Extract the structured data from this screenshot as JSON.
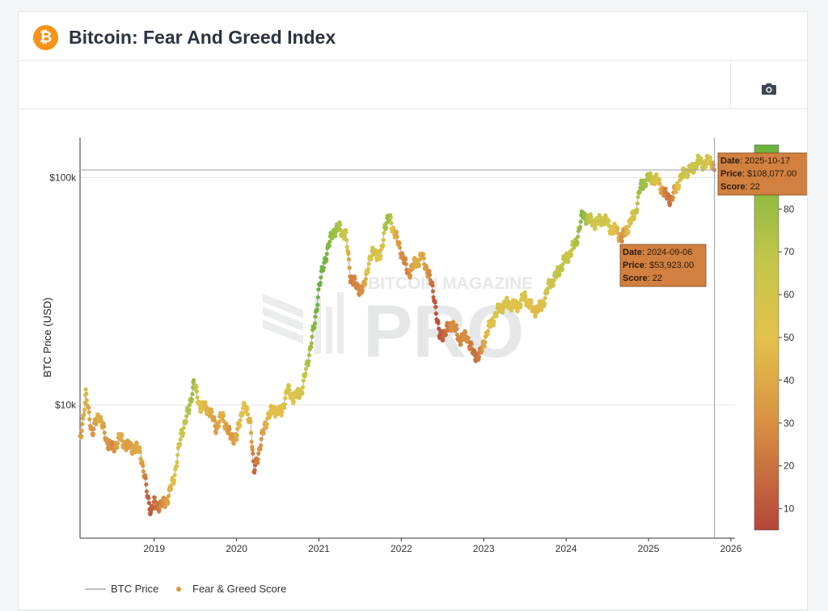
{
  "header": {
    "logo_symbol": "₿",
    "title": "Bitcoin: Fear And Greed Index"
  },
  "toolbar": {
    "camera_icon": "camera-icon"
  },
  "watermark": {
    "line1": "BITCOIN MAGAZINE",
    "line2": "PRO"
  },
  "chart_data": {
    "type": "scatter",
    "title": "Bitcoin: Fear And Greed Index",
    "xlabel": "",
    "ylabel": "BTC Price (USD)",
    "y_scale": "log",
    "ylim": [
      2600,
      150000
    ],
    "xlim": [
      2018.1,
      2026.05
    ],
    "x_ticks": [
      2019,
      2020,
      2021,
      2022,
      2023,
      2024,
      2025,
      2026
    ],
    "x_tick_labels": [
      "2019",
      "2020",
      "2021",
      "2022",
      "2023",
      "2024",
      "2025",
      "2026"
    ],
    "y_ticks": [
      10000,
      100000
    ],
    "y_tick_labels": [
      "$10k",
      "$100k"
    ],
    "colorbar": {
      "ticks": [
        10,
        20,
        30,
        40,
        50,
        60,
        70,
        80
      ],
      "min": 5,
      "max": 95
    },
    "legend": [
      "BTC Price",
      "Fear & Greed Score"
    ],
    "legend_position": "bottom-left",
    "series": [
      {
        "name": "BTC Price",
        "points": [
          [
            2018.1,
            7000,
            28
          ],
          [
            2018.17,
            11000,
            45
          ],
          [
            2018.25,
            7500,
            25
          ],
          [
            2018.33,
            9200,
            42
          ],
          [
            2018.42,
            7000,
            28
          ],
          [
            2018.5,
            6400,
            22
          ],
          [
            2018.58,
            7200,
            40
          ],
          [
            2018.67,
            6600,
            30
          ],
          [
            2018.75,
            6500,
            35
          ],
          [
            2018.83,
            6300,
            38
          ],
          [
            2018.92,
            4000,
            12
          ],
          [
            2018.96,
            3400,
            10
          ],
          [
            2019.0,
            3700,
            15
          ],
          [
            2019.08,
            3600,
            20
          ],
          [
            2019.17,
            3900,
            35
          ],
          [
            2019.25,
            5000,
            55
          ],
          [
            2019.33,
            7500,
            65
          ],
          [
            2019.42,
            9500,
            75
          ],
          [
            2019.48,
            12500,
            80
          ],
          [
            2019.55,
            10000,
            50
          ],
          [
            2019.67,
            9500,
            40
          ],
          [
            2019.75,
            8000,
            30
          ],
          [
            2019.83,
            9000,
            42
          ],
          [
            2019.92,
            7300,
            25
          ],
          [
            2020.0,
            7200,
            38
          ],
          [
            2020.08,
            10000,
            55
          ],
          [
            2020.17,
            8500,
            40
          ],
          [
            2020.21,
            5000,
            12
          ],
          [
            2020.3,
            7000,
            28
          ],
          [
            2020.38,
            9000,
            45
          ],
          [
            2020.46,
            9600,
            50
          ],
          [
            2020.54,
            9200,
            48
          ],
          [
            2020.62,
            11700,
            60
          ],
          [
            2020.7,
            10700,
            50
          ],
          [
            2020.8,
            11800,
            62
          ],
          [
            2020.87,
            16000,
            75
          ],
          [
            2020.95,
            23000,
            85
          ],
          [
            2021.0,
            33000,
            90
          ],
          [
            2021.08,
            45000,
            88
          ],
          [
            2021.17,
            58000,
            80
          ],
          [
            2021.25,
            60000,
            75
          ],
          [
            2021.33,
            55000,
            65
          ],
          [
            2021.38,
            37000,
            20
          ],
          [
            2021.46,
            33000,
            22
          ],
          [
            2021.54,
            32000,
            25
          ],
          [
            2021.6,
            42000,
            55
          ],
          [
            2021.67,
            48000,
            65
          ],
          [
            2021.75,
            44000,
            50
          ],
          [
            2021.8,
            62000,
            75
          ],
          [
            2021.86,
            66000,
            80
          ],
          [
            2021.92,
            57000,
            40
          ],
          [
            2022.0,
            47000,
            25
          ],
          [
            2022.08,
            38000,
            20
          ],
          [
            2022.17,
            42000,
            40
          ],
          [
            2022.25,
            45000,
            38
          ],
          [
            2022.33,
            38000,
            25
          ],
          [
            2022.4,
            30000,
            10
          ],
          [
            2022.46,
            20000,
            8
          ],
          [
            2022.54,
            21000,
            15
          ],
          [
            2022.62,
            23000,
            25
          ],
          [
            2022.7,
            19500,
            22
          ],
          [
            2022.8,
            20000,
            25
          ],
          [
            2022.88,
            16500,
            15
          ],
          [
            2022.96,
            16700,
            20
          ],
          [
            2023.04,
            21000,
            45
          ],
          [
            2023.12,
            24000,
            55
          ],
          [
            2023.2,
            27000,
            60
          ],
          [
            2023.3,
            28000,
            55
          ],
          [
            2023.4,
            27000,
            50
          ],
          [
            2023.5,
            30000,
            58
          ],
          [
            2023.6,
            26000,
            45
          ],
          [
            2023.7,
            27000,
            48
          ],
          [
            2023.8,
            34000,
            65
          ],
          [
            2023.88,
            37000,
            70
          ],
          [
            2023.96,
            42000,
            72
          ],
          [
            2024.04,
            46000,
            65
          ],
          [
            2024.12,
            52000,
            75
          ],
          [
            2024.2,
            69000,
            85
          ],
          [
            2024.28,
            65000,
            70
          ],
          [
            2024.36,
            63000,
            60
          ],
          [
            2024.46,
            66000,
            65
          ],
          [
            2024.54,
            60000,
            50
          ],
          [
            2024.62,
            58000,
            45
          ],
          [
            2024.68,
            53923,
            22
          ],
          [
            2024.76,
            62000,
            50
          ],
          [
            2024.84,
            70000,
            65
          ],
          [
            2024.9,
            90000,
            80
          ],
          [
            2024.96,
            97000,
            78
          ],
          [
            2025.04,
            100000,
            70
          ],
          [
            2025.12,
            96000,
            50
          ],
          [
            2025.2,
            84000,
            20
          ],
          [
            2025.28,
            80000,
            15
          ],
          [
            2025.36,
            95000,
            55
          ],
          [
            2025.44,
            106000,
            65
          ],
          [
            2025.52,
            108000,
            60
          ],
          [
            2025.6,
            118000,
            70
          ],
          [
            2025.68,
            115000,
            60
          ],
          [
            2025.76,
            120000,
            55
          ],
          [
            2025.8,
            108077,
            22
          ]
        ]
      }
    ],
    "tooltips": [
      {
        "date_label": "Date",
        "date": "2025-10-17",
        "price_label": "Price",
        "price": "$108,077.00",
        "score_label": "Score",
        "score": "22"
      },
      {
        "date_label": "Date",
        "date": "2024-09-06",
        "price_label": "Price",
        "price": "$53,923.00",
        "score_label": "Score",
        "score": "22"
      }
    ],
    "hover_x": 2025.8,
    "hover_price": 108077
  },
  "colors": {
    "fear": "#b5463a",
    "greed": "#6bb23d",
    "neutral": "#e2c24b",
    "tooltip": "#d1803f"
  }
}
